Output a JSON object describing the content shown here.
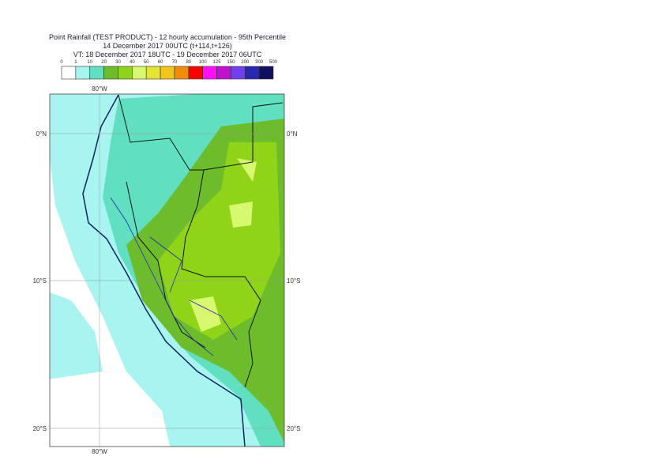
{
  "header": {
    "title": "Point Rainfall (TEST PRODUCT) - 12 hourly accumulation - 95th Percentile",
    "run": "14 December 2017 00UTC (t+114,t+126)",
    "valid": "VT: 18 December 2017 18UTC - 19 December 2017 06UTC"
  },
  "legend": {
    "labels": [
      0,
      1,
      10,
      20,
      30,
      40,
      50,
      60,
      70,
      80,
      100,
      125,
      150,
      200,
      300,
      500
    ],
    "colors": [
      "#ffffff",
      "#a8f4f0",
      "#60e0c0",
      "#6cbc2c",
      "#90d418",
      "#d8f870",
      "#e4e436",
      "#f2c41c",
      "#f08c0c",
      "#ff0000",
      "#ff10ff",
      "#c010d0",
      "#7040f0",
      "#2828b0",
      "#10105c"
    ]
  },
  "map": {
    "top_lon_label": "80°W",
    "bottom_lon_label": "80°W",
    "left_lat_labels": [
      "0°N",
      "10°S",
      "20°S"
    ],
    "right_lat_labels": [
      "0°N",
      "10°S",
      "20°S"
    ]
  }
}
